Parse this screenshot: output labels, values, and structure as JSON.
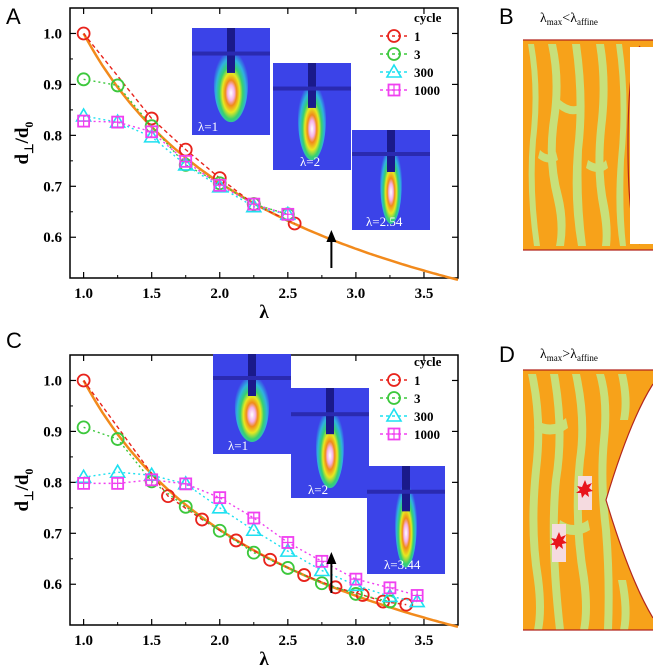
{
  "figure": {
    "panel_letters": [
      "A",
      "B",
      "C",
      "D"
    ],
    "schematics": {
      "B": {
        "title_main": "λ",
        "sub1": "max",
        "relation": "<",
        "title_main2": "λ",
        "sub2": "affine"
      },
      "D": {
        "title_main": "λ",
        "sub1": "max",
        "relation": ">",
        "title_main2": "λ",
        "sub2": "affine"
      }
    },
    "colors": {
      "fit_line": "#f28a1c",
      "cycle_1": "#e8231c",
      "cycle_3": "#3cc83c",
      "cycle_300": "#1ee0f0",
      "cycle_1000": "#f040f0",
      "saxs_bg": "#3b43e8",
      "schematic_orange": "#f7a21a",
      "schematic_green": "#c8e07a",
      "schematic_border": "#b3261e",
      "damage": "#e8141c"
    }
  },
  "chart_data": [
    {
      "panel": "A",
      "type": "line",
      "xlabel": "λ",
      "ylabel_main": "d",
      "ylabel_sub1": "⊥",
      "ylabel_mid": "/d",
      "ylabel_sub2": "0",
      "xlim": [
        0.9,
        3.75
      ],
      "ylim": [
        0.52,
        1.05
      ],
      "xticks": [
        "1.0",
        "1.5",
        "2.0",
        "2.5",
        "3.0",
        "3.5"
      ],
      "yticks": [
        "0.6",
        "0.7",
        "0.8",
        "0.9",
        "1.0"
      ],
      "legend_title": "cycle",
      "legend_position": "top-right",
      "fit_curve": {
        "formula": "1/sqrt(lambda)",
        "x_range": [
          1.0,
          3.75
        ]
      },
      "arrow_x": 2.82,
      "series": [
        {
          "name": "1",
          "marker": "circle",
          "x": [
            1.0,
            1.5,
            1.75,
            2.0,
            2.25,
            2.55
          ],
          "y": [
            1.0,
            0.833,
            0.772,
            0.716,
            0.665,
            0.627
          ]
        },
        {
          "name": "3",
          "marker": "circle",
          "x": [
            1.0,
            1.25,
            1.5,
            1.75,
            2.0,
            2.25,
            2.5
          ],
          "y": [
            0.91,
            0.898,
            0.818,
            0.742,
            0.706,
            0.665,
            0.645
          ]
        },
        {
          "name": "300",
          "marker": "triangle",
          "x": [
            1.0,
            1.25,
            1.5,
            1.75,
            2.0,
            2.25,
            2.5
          ],
          "y": [
            0.838,
            0.826,
            0.797,
            0.742,
            0.699,
            0.66,
            0.645
          ]
        },
        {
          "name": "1000",
          "marker": "square",
          "x": [
            1.0,
            1.25,
            1.5,
            1.75,
            2.0,
            2.25,
            2.5
          ],
          "y": [
            0.828,
            0.826,
            0.807,
            0.749,
            0.702,
            0.665,
            0.645
          ]
        }
      ],
      "insets": [
        {
          "label": "λ=1"
        },
        {
          "label": "λ=2"
        },
        {
          "label": "λ=2.54"
        }
      ]
    },
    {
      "panel": "C",
      "type": "line",
      "xlabel": "λ",
      "ylabel_main": "d",
      "ylabel_sub1": "⊥",
      "ylabel_mid": "/d",
      "ylabel_sub2": "0",
      "xlim": [
        0.9,
        3.75
      ],
      "ylim": [
        0.52,
        1.05
      ],
      "xticks": [
        "1.0",
        "1.5",
        "2.0",
        "2.5",
        "3.0",
        "3.5"
      ],
      "yticks": [
        "0.6",
        "0.7",
        "0.8",
        "0.9",
        "1.0"
      ],
      "legend_title": "cycle",
      "legend_position": "top-right",
      "fit_curve": {
        "formula": "1/sqrt(lambda)",
        "x_range": [
          1.0,
          3.75
        ]
      },
      "arrow_x": 2.82,
      "series": [
        {
          "name": "1",
          "marker": "circle",
          "x": [
            1.0,
            1.62,
            1.87,
            2.12,
            2.37,
            2.62,
            2.85,
            3.05,
            3.2,
            3.37
          ],
          "y": [
            1.0,
            0.773,
            0.727,
            0.686,
            0.648,
            0.618,
            0.594,
            0.579,
            0.566,
            0.56
          ]
        },
        {
          "name": "3",
          "marker": "circle",
          "x": [
            1.0,
            1.25,
            1.5,
            1.75,
            2.0,
            2.25,
            2.5,
            2.75,
            3.0,
            3.25
          ],
          "y": [
            0.908,
            0.885,
            0.802,
            0.752,
            0.705,
            0.662,
            0.632,
            0.602,
            0.581,
            0.566
          ]
        },
        {
          "name": "300",
          "marker": "triangle",
          "x": [
            1.0,
            1.25,
            1.5,
            1.75,
            2.0,
            2.25,
            2.5,
            2.75,
            3.0,
            3.25,
            3.45
          ],
          "y": [
            0.81,
            0.82,
            0.814,
            0.797,
            0.75,
            0.706,
            0.665,
            0.627,
            0.598,
            0.576,
            0.566
          ]
        },
        {
          "name": "1000",
          "marker": "square",
          "x": [
            1.0,
            1.25,
            1.5,
            1.75,
            2.0,
            2.25,
            2.5,
            2.75,
            3.0,
            3.25,
            3.45
          ],
          "y": [
            0.798,
            0.798,
            0.805,
            0.797,
            0.77,
            0.73,
            0.682,
            0.645,
            0.61,
            0.593,
            0.578
          ]
        }
      ],
      "insets": [
        {
          "label": "λ=1"
        },
        {
          "label": "λ=2"
        },
        {
          "label": "λ=3.44"
        }
      ]
    }
  ]
}
